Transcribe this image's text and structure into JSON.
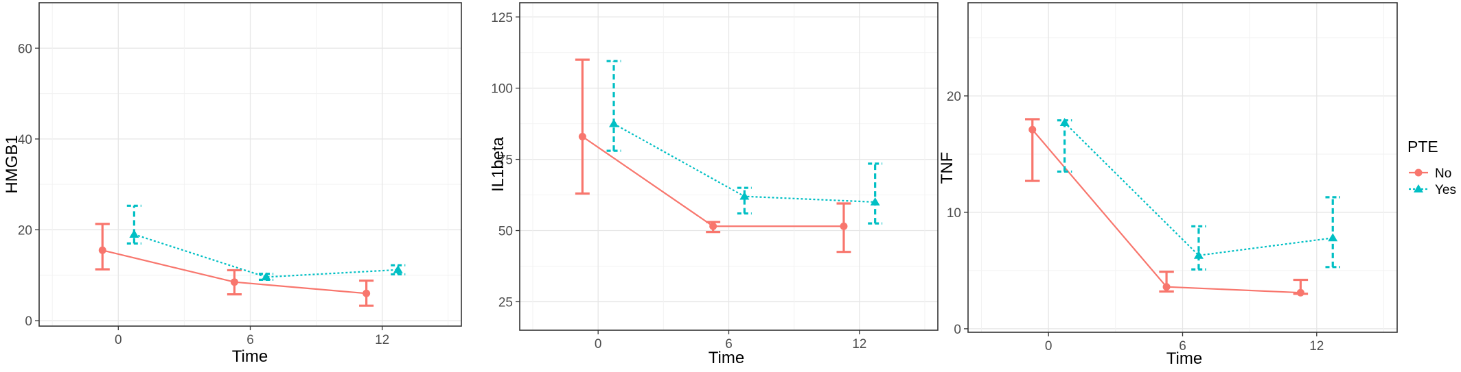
{
  "legend": {
    "title": "PTE",
    "position": "right",
    "entries": [
      {
        "label": "No",
        "color": "#F8766D",
        "marker": "circle",
        "line": "solid"
      },
      {
        "label": "Yes",
        "color": "#00BFC4",
        "marker": "triangle",
        "line": "dotted"
      }
    ]
  },
  "chart_data": [
    {
      "type": "line",
      "xlabel": "Time",
      "ylabel": "HMGB1",
      "categories": [
        "0",
        "6",
        "12"
      ],
      "xlim": [
        -0.6,
        2.6
      ],
      "ylim": [
        -1.2,
        70
      ],
      "yticks": [
        0,
        20,
        40,
        60
      ],
      "grid": true,
      "series": [
        {
          "name": "No",
          "values": [
            15.5,
            8.5,
            6.0
          ],
          "lower": [
            11.3,
            5.8,
            3.3
          ],
          "upper": [
            21.3,
            11.1,
            8.8
          ]
        },
        {
          "name": "Yes",
          "values": [
            19.0,
            9.6,
            11.2
          ],
          "lower": [
            17.0,
            9.0,
            10.2
          ],
          "upper": [
            25.3,
            10.3,
            12.2
          ]
        }
      ]
    },
    {
      "type": "line",
      "xlabel": "Time",
      "ylabel": "IL1beta",
      "categories": [
        "0",
        "6",
        "12"
      ],
      "xlim": [
        -0.6,
        2.6
      ],
      "ylim": [
        15,
        130
      ],
      "yticks": [
        25,
        50,
        75,
        100,
        125
      ],
      "grid": true,
      "series": [
        {
          "name": "No",
          "values": [
            83.0,
            51.5,
            51.5
          ],
          "lower": [
            63.0,
            49.5,
            42.5
          ],
          "upper": [
            110.0,
            53.0,
            59.5
          ]
        },
        {
          "name": "Yes",
          "values": [
            87.5,
            62.0,
            60.0
          ],
          "lower": [
            78.0,
            56.0,
            52.5
          ],
          "upper": [
            109.5,
            65.0,
            73.5
          ]
        }
      ]
    },
    {
      "type": "line",
      "xlabel": "Time",
      "ylabel": "TNF",
      "categories": [
        "0",
        "6",
        "12"
      ],
      "xlim": [
        -0.6,
        2.6
      ],
      "ylim": [
        -0.3,
        28
      ],
      "yticks": [
        0,
        10,
        20
      ],
      "grid": true,
      "series": [
        {
          "name": "No",
          "values": [
            17.1,
            3.6,
            3.1
          ],
          "lower": [
            12.7,
            3.2,
            3.0
          ],
          "upper": [
            18.0,
            4.9,
            4.2
          ]
        },
        {
          "name": "Yes",
          "values": [
            17.7,
            6.3,
            7.8
          ],
          "lower": [
            13.5,
            5.1,
            5.3
          ],
          "upper": [
            17.9,
            8.8,
            11.3
          ]
        }
      ]
    }
  ]
}
